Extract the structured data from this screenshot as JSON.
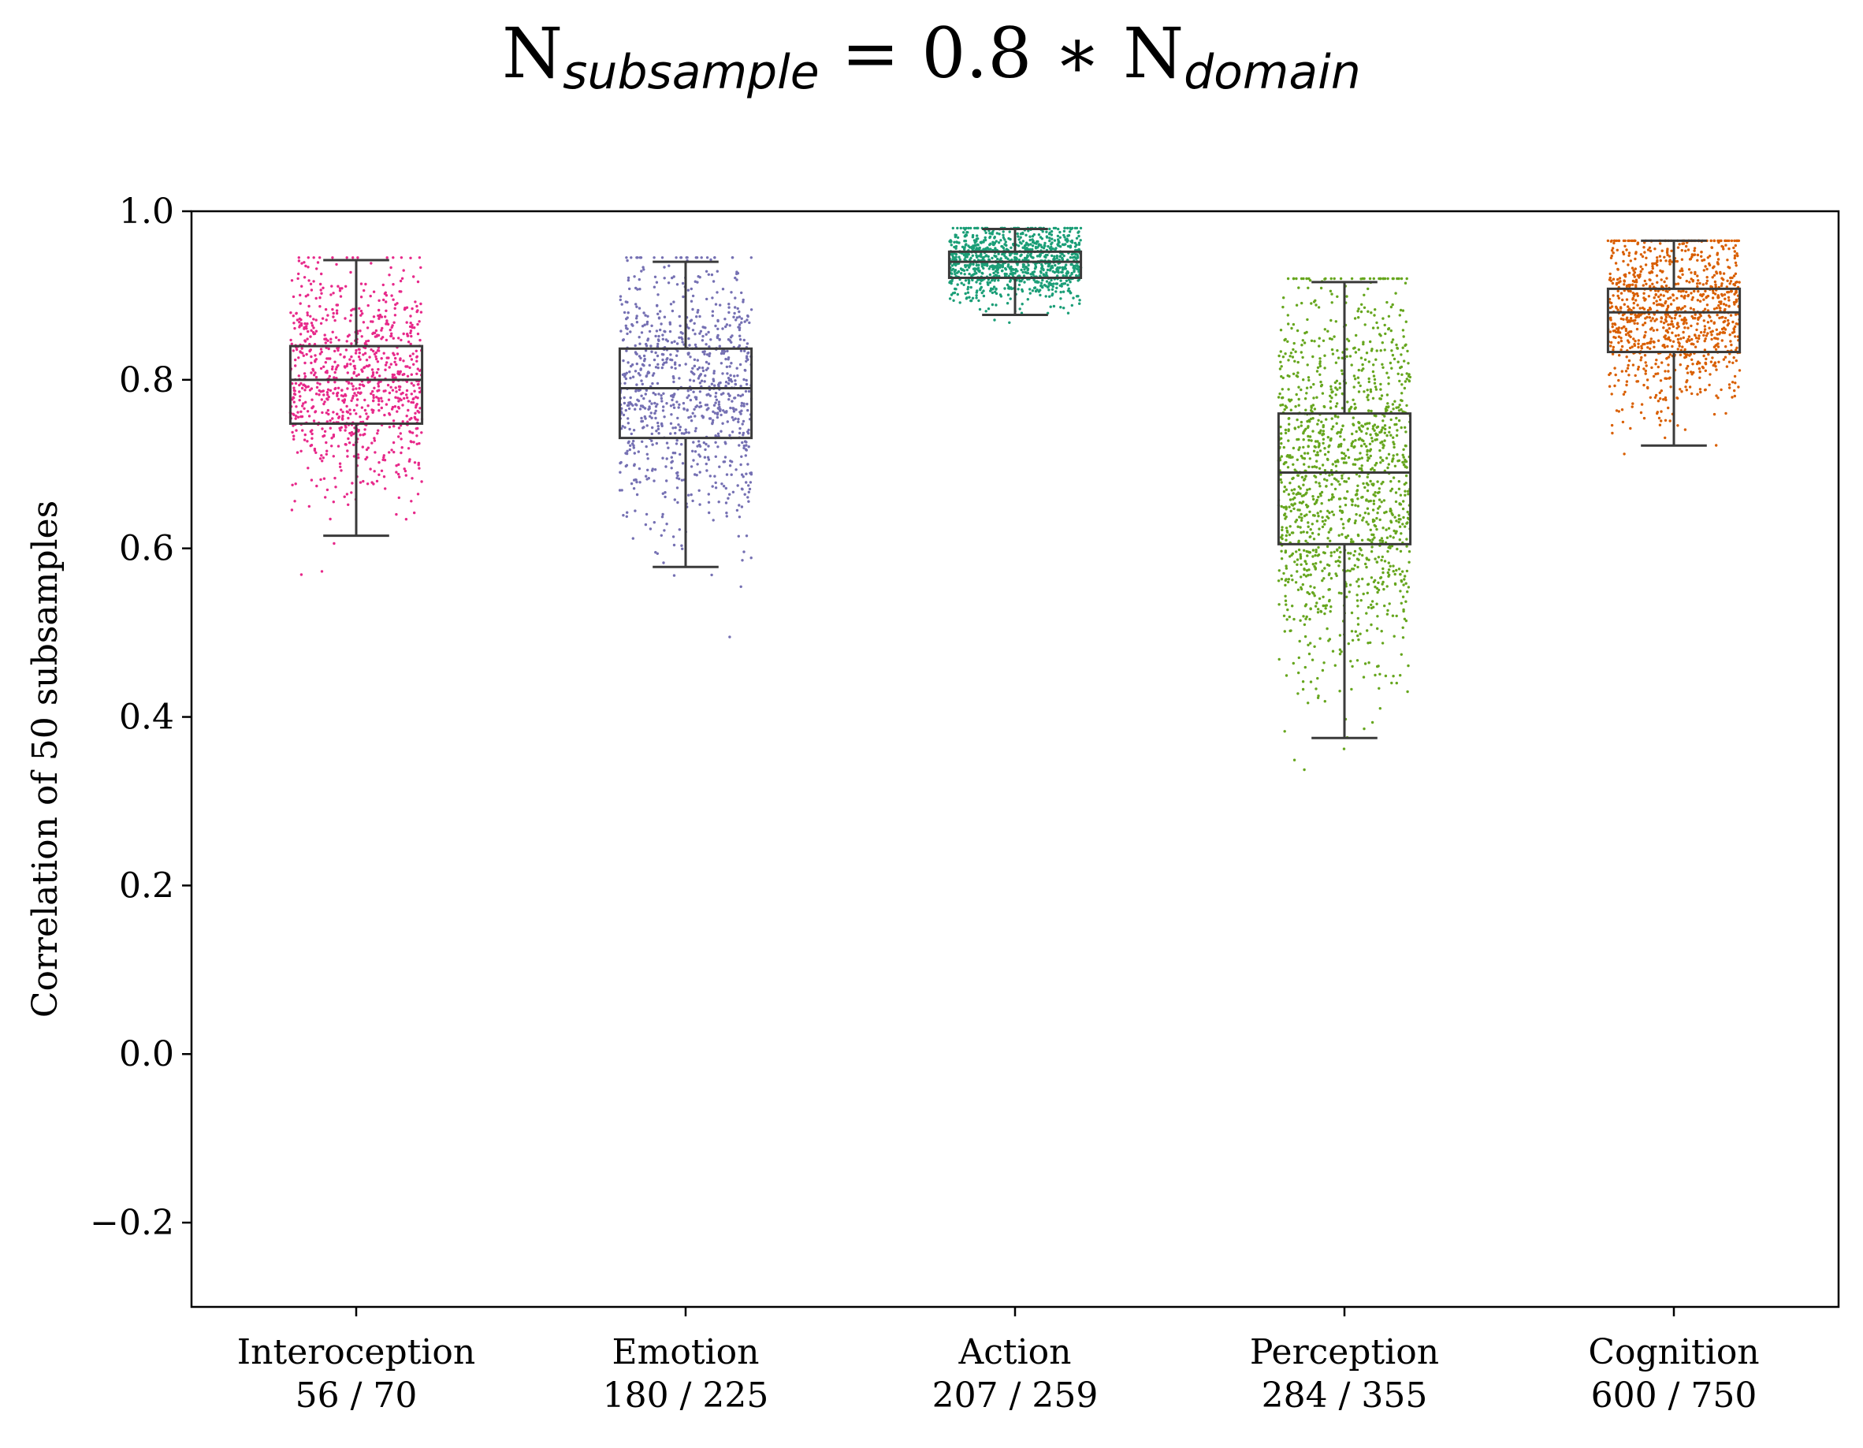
{
  "chart_data": {
    "type": "box",
    "title": {
      "parts": [
        {
          "text": "N",
          "style": "main"
        },
        {
          "text": "subsample",
          "style": "sub"
        },
        {
          "text": " = 0.8 ∗ N",
          "style": "main"
        },
        {
          "text": "domain",
          "style": "sub"
        }
      ]
    },
    "ylabel": "Correlation of 50 subsamples",
    "xlabel": "",
    "ylim": [
      -0.3,
      1.0
    ],
    "yticks": [
      {
        "value": -0.2,
        "label": "−0.2"
      },
      {
        "value": 0.0,
        "label": "0.0"
      },
      {
        "value": 0.2,
        "label": "0.2"
      },
      {
        "value": 0.4,
        "label": "0.4"
      },
      {
        "value": 0.6,
        "label": "0.6"
      },
      {
        "value": 0.8,
        "label": "0.8"
      },
      {
        "value": 1.0,
        "label": "1.0"
      }
    ],
    "grid": false,
    "legend": "none",
    "categories": [
      {
        "name": "Interoception",
        "count": "56 / 70",
        "color": "#e7298a",
        "whisker_low": 0.615,
        "q1": 0.748,
        "median": 0.8,
        "q3": 0.84,
        "whisker_high": 0.942,
        "points_range": [
          0.485,
          0.945
        ],
        "n_points": 900
      },
      {
        "name": "Emotion",
        "count": "180 / 225",
        "color": "#7570b3",
        "whisker_low": 0.578,
        "q1": 0.731,
        "median": 0.79,
        "q3": 0.837,
        "whisker_high": 0.94,
        "points_range": [
          0.395,
          0.945
        ],
        "n_points": 900
      },
      {
        "name": "Action",
        "count": "207 / 259",
        "color": "#1b9e77",
        "whisker_low": 0.877,
        "q1": 0.921,
        "median": 0.94,
        "q3": 0.952,
        "whisker_high": 0.979,
        "points_range": [
          0.815,
          0.98
        ],
        "n_points": 1000
      },
      {
        "name": "Perception",
        "count": "284 / 355",
        "color": "#66a61e",
        "whisker_low": 0.375,
        "q1": 0.605,
        "median": 0.69,
        "q3": 0.76,
        "whisker_high": 0.916,
        "points_range": [
          0.225,
          0.92
        ],
        "n_points": 1400
      },
      {
        "name": "Cognition",
        "count": "600 / 750",
        "color": "#d95f02",
        "whisker_low": 0.722,
        "q1": 0.833,
        "median": 0.88,
        "q3": 0.908,
        "whisker_high": 0.965,
        "points_range": [
          0.62,
          0.965
        ],
        "n_points": 1000
      }
    ]
  }
}
